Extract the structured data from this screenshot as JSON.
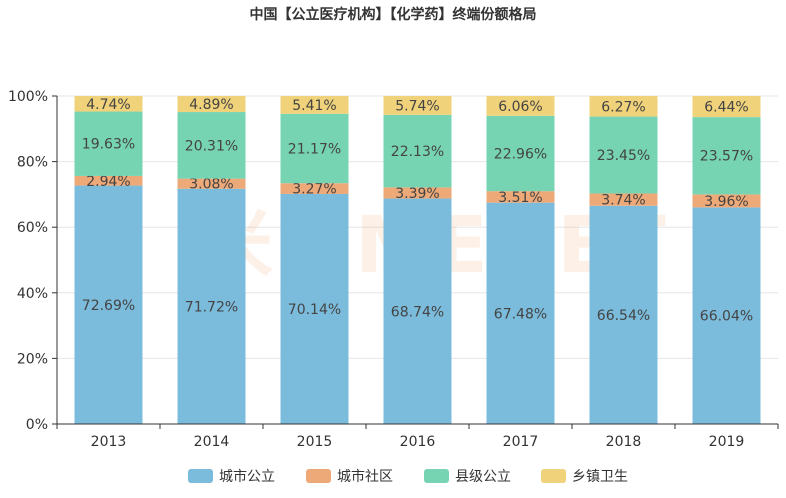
{
  "chart_data": {
    "type": "bar",
    "stacked": true,
    "percent": true,
    "title": "中国【公立医疗机构】【化学药】终端份额格局",
    "categories": [
      "2013",
      "2014",
      "2015",
      "2016",
      "2017",
      "2018",
      "2019"
    ],
    "y_ticks": [
      "0%",
      "20%",
      "40%",
      "60%",
      "80%",
      "100%"
    ],
    "ylim": [
      0,
      100
    ],
    "legend_position": "bottom-center",
    "watermark": "米内MENET",
    "series": [
      {
        "name": "城市公立",
        "color": "#7bbcdc",
        "values": [
          72.69,
          71.72,
          70.14,
          68.74,
          67.48,
          66.54,
          66.04
        ],
        "labels": [
          "72.69%",
          "71.72%",
          "70.14%",
          "68.74%",
          "67.48%",
          "66.54%",
          "66.04%"
        ]
      },
      {
        "name": "城市社区",
        "color": "#eea978",
        "values": [
          2.94,
          3.08,
          3.27,
          3.39,
          3.51,
          3.74,
          3.96
        ],
        "labels": [
          "2.94%",
          "3.08%",
          "3.27%",
          "3.39%",
          "3.51%",
          "3.74%",
          "3.96%"
        ]
      },
      {
        "name": "县级公立",
        "color": "#76d4b3",
        "values": [
          19.63,
          20.31,
          21.17,
          22.13,
          22.96,
          23.45,
          23.57
        ],
        "labels": [
          "19.63%",
          "20.31%",
          "21.17%",
          "22.13%",
          "22.96%",
          "23.45%",
          "23.57%"
        ]
      },
      {
        "name": "乡镇卫生",
        "color": "#f0d27a",
        "values": [
          4.74,
          4.89,
          5.41,
          5.74,
          6.06,
          6.27,
          6.44
        ],
        "labels": [
          "4.74%",
          "4.89%",
          "5.41%",
          "5.74%",
          "6.06%",
          "6.27%",
          "6.44%"
        ]
      }
    ]
  }
}
